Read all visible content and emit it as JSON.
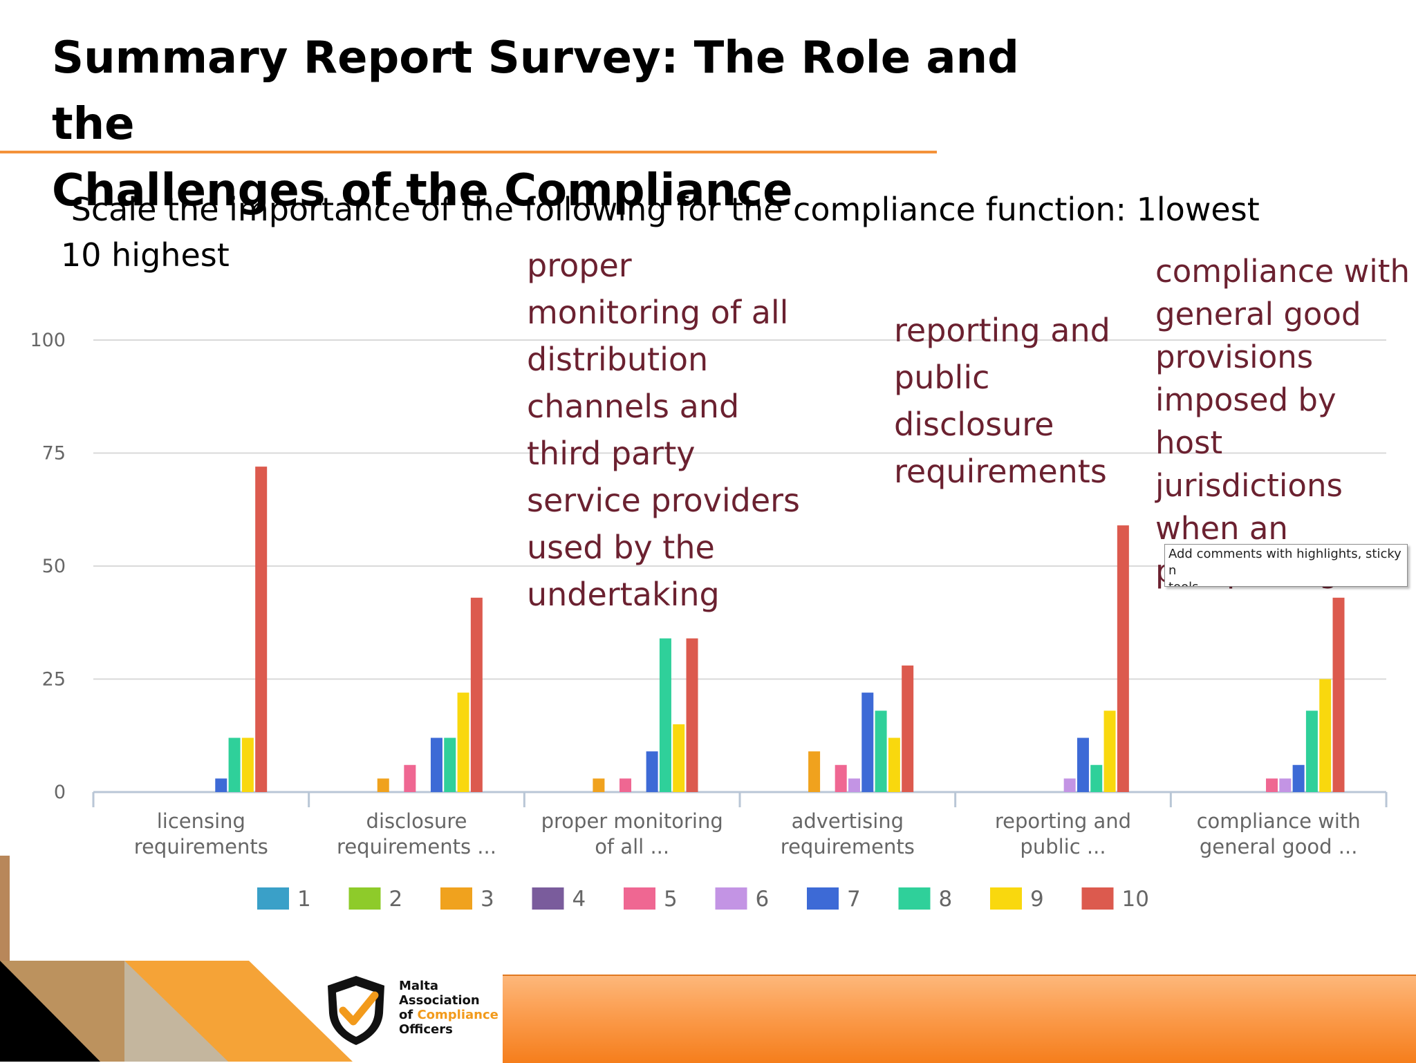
{
  "page": {
    "title_line1": "Summary Report Survey: The Role and the",
    "title_line2": "Challenges of the Compliance",
    "question": " Scale the importance of the following for the compliance function: 1lowest\n10 highest"
  },
  "annotations": {
    "a": "proper\nmonitoring of all\ndistribution\nchannels and\nthird party\nservice providers\nused by the\nundertaking",
    "b": "reporting and\npublic\ndisclosure\nrequirements",
    "c": "compliance with\ngeneral good\nprovisions\nimposed by host\njurisdictions\nwhen an\npassporting."
  },
  "tooltip": {
    "text": "Add comments with highlights, sticky n\ntools"
  },
  "logo": {
    "line1": "Malta",
    "line2": "Association",
    "line3_prefix": "of ",
    "line3_highlight": "Compliance",
    "line4": "Officers"
  },
  "colors": {
    "accent_orange": "#f4923a",
    "annotation_text": "#6b2130"
  },
  "chart_data": {
    "type": "bar",
    "categories": [
      [
        "licensing",
        "requirements"
      ],
      [
        "disclosure",
        "requirements ..."
      ],
      [
        "proper monitoring",
        "of all ..."
      ],
      [
        "advertising",
        "requirements"
      ],
      [
        "reporting and",
        "public ..."
      ],
      [
        "compliance with",
        "general good ..."
      ]
    ],
    "series": [
      {
        "name": "1",
        "color": "#3aa0c8",
        "values": [
          0,
          0,
          0,
          0,
          0,
          0
        ]
      },
      {
        "name": "2",
        "color": "#8ecb2a",
        "values": [
          0,
          0,
          0,
          0,
          0,
          0
        ]
      },
      {
        "name": "3",
        "color": "#f0a21e",
        "values": [
          0,
          3,
          3,
          9,
          0,
          0
        ]
      },
      {
        "name": "4",
        "color": "#7a5c9c",
        "values": [
          0,
          0,
          0,
          0,
          0,
          0
        ]
      },
      {
        "name": "5",
        "color": "#ef6792",
        "values": [
          0,
          6,
          3,
          6,
          0,
          3
        ]
      },
      {
        "name": "6",
        "color": "#c394e4",
        "values": [
          0,
          0,
          0,
          3,
          3,
          3
        ]
      },
      {
        "name": "7",
        "color": "#3d6ad6",
        "values": [
          3,
          12,
          9,
          22,
          12,
          6
        ]
      },
      {
        "name": "8",
        "color": "#2fd09a",
        "values": [
          12,
          12,
          34,
          18,
          6,
          18
        ]
      },
      {
        "name": "9",
        "color": "#f9d80e",
        "values": [
          12,
          22,
          15,
          12,
          18,
          25
        ]
      },
      {
        "name": "10",
        "color": "#dc5a4e",
        "values": [
          72,
          43,
          34,
          28,
          59,
          43
        ]
      }
    ],
    "yticks": [
      0,
      25,
      50,
      75,
      100
    ],
    "ylim": [
      0,
      100
    ],
    "grid": true,
    "legend": "bottom"
  }
}
